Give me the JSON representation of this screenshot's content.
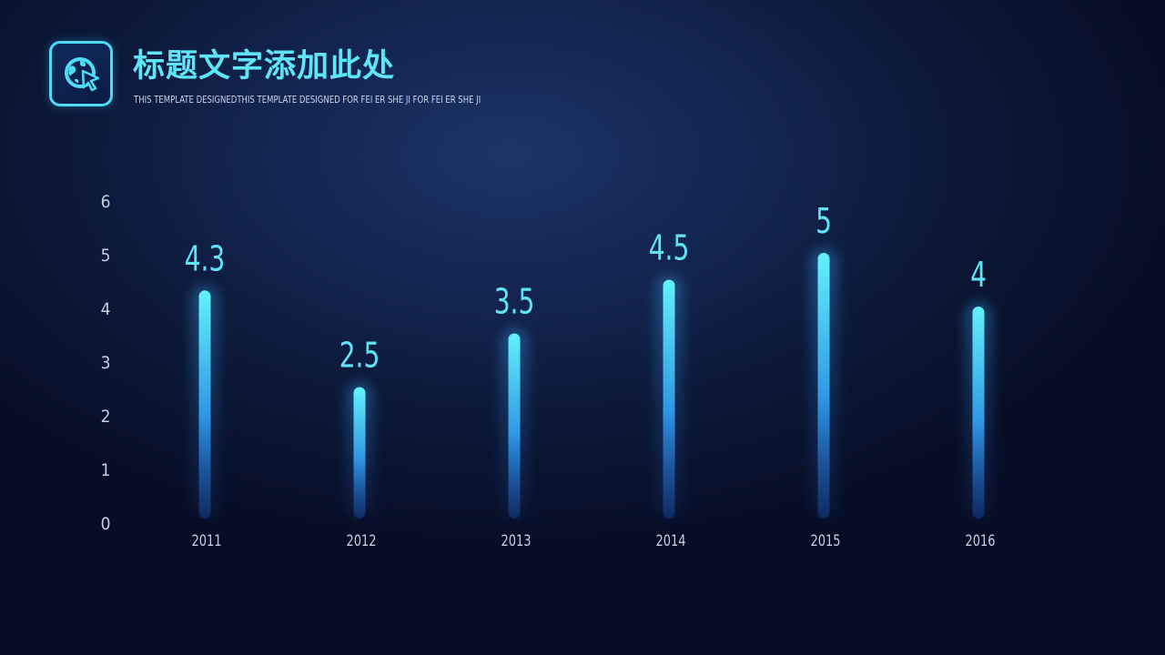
{
  "header": {
    "title": "标题文字添加此处",
    "subtitle": "THIS TEMPLATE DESIGNEDTHIS  TEMPLATE DESIGNED  FOR  FEI  ER SHE  JI FOR  FEI  ER SHE  JI",
    "logo_icon": "globe-cursor-icon"
  },
  "colors": {
    "accent": "#5ee6f8",
    "bar_top": "#5ff0fb",
    "bar_bottom": "#1f6fd0",
    "background": "#0b1838"
  },
  "chart_data": {
    "type": "bar",
    "categories": [
      "2011",
      "2012",
      "2013",
      "2014",
      "2015",
      "2016"
    ],
    "values": [
      4.3,
      2.5,
      3.5,
      4.5,
      5,
      4
    ],
    "data_labels": [
      "4.3",
      "2.5",
      "3.5",
      "4.5",
      "5",
      "4"
    ],
    "yticks": [
      "0",
      "1",
      "2",
      "3",
      "4",
      "5",
      "6"
    ],
    "ylim": [
      0,
      6
    ],
    "grid": true,
    "legend": "none",
    "title": "",
    "xlabel": "",
    "ylabel": ""
  }
}
